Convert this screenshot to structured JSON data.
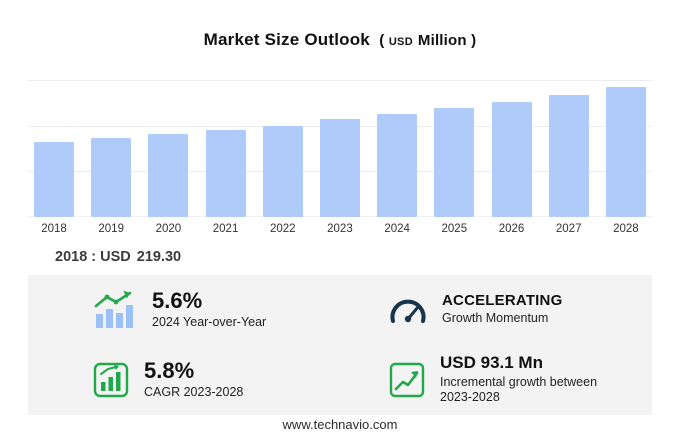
{
  "title": {
    "main": "Market Size Outlook",
    "paren_open": "(",
    "unit_small": "USD",
    "unit": "Million",
    "paren_close": ")"
  },
  "chart_data": {
    "type": "bar",
    "title": "Market Size Outlook (USD Million)",
    "categories": [
      "2018",
      "2019",
      "2020",
      "2021",
      "2022",
      "2023",
      "2024",
      "2025",
      "2026",
      "2027",
      "2028"
    ],
    "values": [
      219.3,
      230.0,
      241.5,
      253.5,
      266.5,
      285.8,
      301.8,
      318.6,
      337.1,
      356.6,
      378.9
    ],
    "xlabel": "",
    "ylabel": "USD Million",
    "ylim": [
      0,
      400
    ],
    "grid": true,
    "legend": "none",
    "bar_color": "#aecbfa",
    "annotation": "2018 : USD 219.30"
  },
  "annotation": {
    "year_label": "2018 : USD",
    "value": "219.30"
  },
  "stats": [
    {
      "value": "5.6%",
      "label": "2024 Year-over-Year",
      "icon": "bar-chart-growth-icon"
    },
    {
      "value": "ACCELERATING",
      "label": "Growth Momentum",
      "icon": "speedometer-icon"
    },
    {
      "value": "5.8%",
      "label": "CAGR 2023-2028",
      "icon": "green-bar-chart-icon"
    },
    {
      "value": "USD 93.1 Mn",
      "label": "Incremental growth between 2023-2028",
      "icon": "line-chart-icon"
    }
  ],
  "colors": {
    "bar": "#aecbfa",
    "accent_green": "#21a84a",
    "gauge_dark": "#16344c",
    "panel_bg": "#f3f3f3"
  },
  "footer": {
    "url": "www.technavio.com"
  }
}
